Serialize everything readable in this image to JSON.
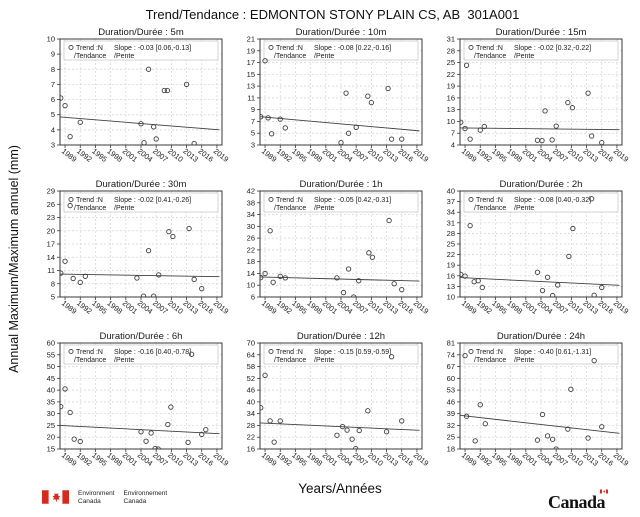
{
  "title": "Trend/Tendance : EDMONTON STONY PLAIN CS, AB  301A001",
  "ylabel": "Annual Maximum/Maximum annuel (mm)",
  "xlabel": "Years/Années",
  "colors": {
    "text": "#1a1a1a",
    "frame": "#3a3a3a",
    "grid": "#d2d2d2",
    "marker": "#3f3f3f",
    "trend": "#3f3f3f",
    "legend_border": "#c4c4c4",
    "flag_red": "#d52b1e"
  },
  "legend": {
    "trend_line1": "Trend :N",
    "trend_line2": "/Tendance",
    "slope_word": "Slope : ",
    "pente": "/Pente"
  },
  "duration_prefix": "Duration/Durée : ",
  "footer": {
    "env_en_line1": "Environment",
    "env_en_line2": "Canada",
    "env_fr_line1": "Environnement",
    "env_fr_line2": "Canada",
    "wordmark_head": "Canad",
    "wordmark_tail": "a"
  },
  "chart_data": [
    {
      "type": "scatter",
      "duration": "5m",
      "trend_n": "N",
      "slope_label": "-0.03 [0.06,-0.13]",
      "xlim": [
        1988,
        2020
      ],
      "ylim": [
        3,
        10
      ],
      "xticks": [
        1989,
        1992,
        1995,
        1998,
        2001,
        2004,
        2007,
        2010,
        2013,
        2016,
        2019
      ],
      "yticks": [
        3,
        4,
        5,
        6,
        7,
        8,
        9,
        10
      ],
      "points": [
        [
          1988.15,
          6.1
        ],
        [
          1989,
          5.6
        ],
        [
          1990,
          3.55
        ],
        [
          1992,
          4.5
        ],
        [
          2004,
          4.4
        ],
        [
          2004.6,
          3.15
        ],
        [
          2005.5,
          8.0
        ],
        [
          2006.5,
          4.2
        ],
        [
          2007,
          3.4
        ],
        [
          2008.6,
          6.6
        ],
        [
          2009.2,
          6.6
        ],
        [
          2013,
          7.0
        ],
        [
          2014.5,
          3.1
        ]
      ],
      "trend": {
        "x": [
          1988,
          2019.5
        ],
        "y": [
          4.85,
          4.0
        ]
      }
    },
    {
      "type": "scatter",
      "duration": "10m",
      "trend_n": "N",
      "slope_label": "-0.08 [0.22,-0.16]",
      "xlim": [
        1988,
        2020
      ],
      "ylim": [
        3,
        21
      ],
      "xticks": [
        1989,
        1992,
        1995,
        1998,
        2001,
        2004,
        2007,
        2010,
        2013,
        2016,
        2019
      ],
      "yticks": [
        3,
        5,
        7,
        9,
        11,
        13,
        15,
        17,
        19,
        21
      ],
      "points": [
        [
          1988.15,
          7.8
        ],
        [
          1989,
          17.3
        ],
        [
          1989.6,
          7.6
        ],
        [
          1990.3,
          4.9
        ],
        [
          1992,
          7.4
        ],
        [
          1993,
          5.9
        ],
        [
          2004,
          3.4
        ],
        [
          2005,
          11.8
        ],
        [
          2005.5,
          5.0
        ],
        [
          2007,
          6.0
        ],
        [
          2009.3,
          11.3
        ],
        [
          2010,
          10.2
        ],
        [
          2013.3,
          12.6
        ],
        [
          2014,
          4.0
        ],
        [
          2016,
          4.0
        ]
      ],
      "trend": {
        "x": [
          1988,
          2019.5
        ],
        "y": [
          7.8,
          5.4
        ]
      }
    },
    {
      "type": "scatter",
      "duration": "15m",
      "trend_n": "N",
      "slope_label": "-0.02 [0.32,-0.22]",
      "xlim": [
        1988,
        2020
      ],
      "ylim": [
        4,
        31
      ],
      "xticks": [
        1989,
        1992,
        1995,
        1998,
        2001,
        2004,
        2007,
        2010,
        2013,
        2016,
        2019
      ],
      "yticks": [
        4,
        7,
        10,
        13,
        16,
        19,
        22,
        25,
        28,
        31
      ],
      "points": [
        [
          1988.15,
          9.8
        ],
        [
          1989,
          8.2
        ],
        [
          1989.3,
          24.3
        ],
        [
          1990,
          5.5
        ],
        [
          1992,
          7.8
        ],
        [
          1992.8,
          8.7
        ],
        [
          2003.3,
          5.2
        ],
        [
          2004.2,
          5.1
        ],
        [
          2004.8,
          12.7
        ],
        [
          2006.2,
          5.3
        ],
        [
          2007,
          8.8
        ],
        [
          2009.3,
          14.8
        ],
        [
          2010.2,
          13.5
        ],
        [
          2013.3,
          17.2
        ],
        [
          2014,
          6.3
        ],
        [
          2016,
          4.6
        ]
      ],
      "trend": {
        "x": [
          1988,
          2019.5
        ],
        "y": [
          8.35,
          7.9
        ]
      }
    },
    {
      "type": "scatter",
      "duration": "30m",
      "trend_n": "N",
      "slope_label": "-0.02 [0.41,-0.26]",
      "xlim": [
        1988,
        2020
      ],
      "ylim": [
        5,
        29
      ],
      "xticks": [
        1989,
        1992,
        1995,
        1998,
        2001,
        2004,
        2007,
        2010,
        2013,
        2016,
        2019
      ],
      "yticks": [
        5,
        8,
        11,
        14,
        17,
        20,
        23,
        26,
        29
      ],
      "points": [
        [
          1988.15,
          10.4
        ],
        [
          1989,
          13.1
        ],
        [
          1990,
          25.7
        ],
        [
          1990.6,
          9.2
        ],
        [
          1992,
          8.3
        ],
        [
          1993,
          9.7
        ],
        [
          2003.2,
          9.3
        ],
        [
          2004.5,
          5.2
        ],
        [
          2005.5,
          15.5
        ],
        [
          2006.5,
          5.2
        ],
        [
          2007.5,
          10.0
        ],
        [
          2009.5,
          19.8
        ],
        [
          2010.3,
          18.7
        ],
        [
          2013.5,
          20.5
        ],
        [
          2014.5,
          9.0
        ],
        [
          2016,
          6.9
        ]
      ],
      "trend": {
        "x": [
          1988,
          2019.5
        ],
        "y": [
          10.2,
          9.6
        ]
      }
    },
    {
      "type": "scatter",
      "duration": "1h",
      "trend_n": "N",
      "slope_label": "-0.05 [0.42,-0.31]",
      "xlim": [
        1988,
        2020
      ],
      "ylim": [
        6,
        42
      ],
      "xticks": [
        1989,
        1992,
        1995,
        1998,
        2001,
        2004,
        2007,
        2010,
        2013,
        2016,
        2019
      ],
      "yticks": [
        6,
        10,
        14,
        18,
        22,
        26,
        30,
        34,
        38,
        42
      ],
      "points": [
        [
          1988.15,
          12.6
        ],
        [
          1989,
          14.0
        ],
        [
          1990,
          28.5
        ],
        [
          1990.6,
          11.0
        ],
        [
          1992,
          13.0
        ],
        [
          1993,
          12.5
        ],
        [
          2003.2,
          12.5
        ],
        [
          2004.5,
          7.5
        ],
        [
          2005.5,
          15.5
        ],
        [
          2006.5,
          6.0
        ],
        [
          2007.5,
          11.5
        ],
        [
          2009.5,
          21.0
        ],
        [
          2010.2,
          19.5
        ],
        [
          2013.5,
          32.0
        ],
        [
          2014.5,
          10.5
        ],
        [
          2016,
          8.5
        ]
      ],
      "trend": {
        "x": [
          1988,
          2019.5
        ],
        "y": [
          12.8,
          11.4
        ]
      }
    },
    {
      "type": "scatter",
      "duration": "2h",
      "trend_n": "N",
      "slope_label": "-0.08 [0.40,-0.32]",
      "xlim": [
        1988,
        2020
      ],
      "ylim": [
        10,
        40
      ],
      "xticks": [
        1989,
        1992,
        1995,
        1998,
        2001,
        2004,
        2007,
        2010,
        2013,
        2016,
        2019
      ],
      "yticks": [
        10,
        13,
        16,
        19,
        22,
        25,
        28,
        31,
        34,
        37,
        40
      ],
      "points": [
        [
          1988.15,
          16.4
        ],
        [
          1989,
          15.9
        ],
        [
          1990,
          30.2
        ],
        [
          1990.8,
          14.3
        ],
        [
          1991.6,
          14.6
        ],
        [
          1992.4,
          12.7
        ],
        [
          2003.3,
          17.0
        ],
        [
          2004.3,
          11.8
        ],
        [
          2005.3,
          15.6
        ],
        [
          2006.3,
          10.4
        ],
        [
          2007.3,
          13.4
        ],
        [
          2009.5,
          21.5
        ],
        [
          2010.3,
          29.4
        ],
        [
          2014,
          37.8
        ],
        [
          2014.5,
          10.5
        ],
        [
          2016,
          12.7
        ]
      ],
      "trend": {
        "x": [
          1988,
          2019.5
        ],
        "y": [
          15.5,
          13.3
        ]
      }
    },
    {
      "type": "scatter",
      "duration": "6h",
      "trend_n": "N",
      "slope_label": "-0.16 [0.40,-0.78]",
      "xlim": [
        1988,
        2020
      ],
      "ylim": [
        15,
        60
      ],
      "xticks": [
        1989,
        1992,
        1995,
        1998,
        2001,
        2004,
        2007,
        2010,
        2013,
        2016,
        2019
      ],
      "yticks": [
        15,
        20,
        25,
        30,
        35,
        40,
        45,
        50,
        55,
        60
      ],
      "points": [
        [
          1988.15,
          33.0
        ],
        [
          1989,
          40.5
        ],
        [
          1990,
          30.5
        ],
        [
          1990.8,
          19.2
        ],
        [
          1992,
          18.2
        ],
        [
          2004,
          22.3
        ],
        [
          2005,
          18.3
        ],
        [
          2006,
          21.8
        ],
        [
          2006.8,
          15.2
        ],
        [
          2007.4,
          15.0
        ],
        [
          2009.3,
          25.4
        ],
        [
          2009.9,
          32.8
        ],
        [
          2013.3,
          17.8
        ],
        [
          2014,
          55.2
        ],
        [
          2016,
          21.2
        ],
        [
          2016.8,
          23.2
        ]
      ],
      "trend": {
        "x": [
          1988,
          2019.5
        ],
        "y": [
          25.0,
          21.5
        ]
      }
    },
    {
      "type": "scatter",
      "duration": "12h",
      "trend_n": "N",
      "slope_label": "-0.15 [0.59,-0.59]",
      "xlim": [
        1988,
        2020
      ],
      "ylim": [
        16,
        70
      ],
      "xticks": [
        1989,
        1992,
        1995,
        1998,
        2001,
        2004,
        2007,
        2010,
        2013,
        2016,
        2019
      ],
      "yticks": [
        16,
        22,
        28,
        34,
        40,
        46,
        52,
        58,
        64,
        70
      ],
      "points": [
        [
          1988.15,
          37.0
        ],
        [
          1989,
          53.5
        ],
        [
          1990,
          30.3
        ],
        [
          1990.8,
          19.5
        ],
        [
          1992,
          30.3
        ],
        [
          2003.2,
          23.0
        ],
        [
          2004.3,
          27.4
        ],
        [
          2005.2,
          25.6
        ],
        [
          2006.2,
          21.0
        ],
        [
          2006.9,
          16.2
        ],
        [
          2007.6,
          25.4
        ],
        [
          2009.3,
          35.5
        ],
        [
          2013,
          24.8
        ],
        [
          2014,
          63.0
        ],
        [
          2016,
          30.3
        ]
      ],
      "trend": {
        "x": [
          1988,
          2019.5
        ],
        "y": [
          29.3,
          25.5
        ]
      }
    },
    {
      "type": "scatter",
      "duration": "24h",
      "trend_n": "N",
      "slope_label": "-0.40 [0.61,-1.31]",
      "xlim": [
        1988,
        2020
      ],
      "ylim": [
        18,
        81
      ],
      "xticks": [
        1989,
        1992,
        1995,
        1998,
        2001,
        2004,
        2007,
        2010,
        2013,
        2016,
        2019
      ],
      "yticks": [
        18,
        25,
        32,
        39,
        46,
        53,
        60,
        67,
        74,
        81
      ],
      "points": [
        [
          1989,
          73.5
        ],
        [
          1989.3,
          37.5
        ],
        [
          1991,
          22.8
        ],
        [
          1992,
          44.3
        ],
        [
          1993,
          33.0
        ],
        [
          2003.3,
          23.3
        ],
        [
          2004.3,
          38.5
        ],
        [
          2005.3,
          25.8
        ],
        [
          2006.3,
          23.8
        ],
        [
          2007,
          18.0
        ],
        [
          2009.3,
          29.8
        ],
        [
          2009.9,
          53.5
        ],
        [
          2013.3,
          24.5
        ],
        [
          2014.5,
          70.5
        ],
        [
          2016,
          31.2
        ]
      ],
      "trend": {
        "x": [
          1988,
          2019.5
        ],
        "y": [
          38.0,
          27.3
        ]
      }
    }
  ]
}
